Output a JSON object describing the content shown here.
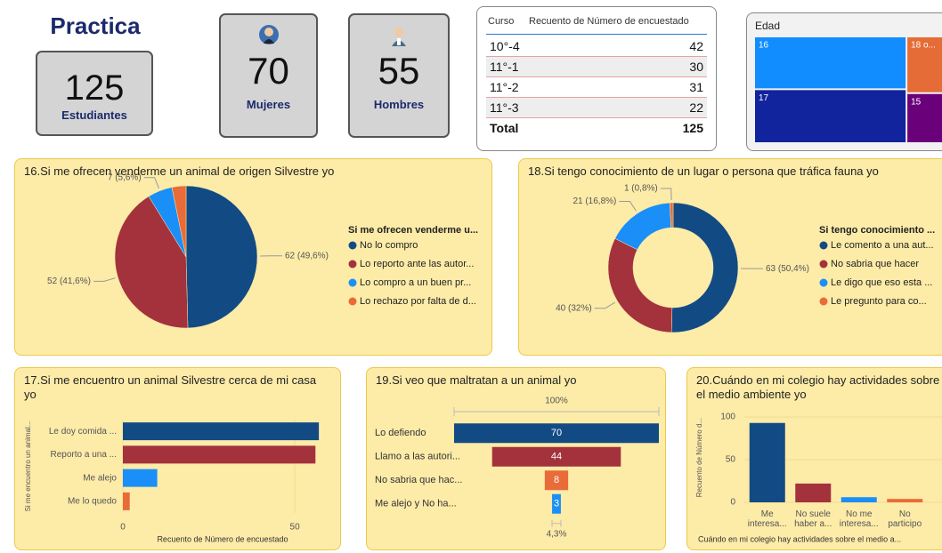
{
  "title": "Practica",
  "cards": [
    {
      "value": 125,
      "label": "Estudiantes"
    },
    {
      "value": 70,
      "label": "Mujeres"
    },
    {
      "value": 55,
      "label": "Hombres"
    }
  ],
  "table": {
    "columns": [
      "Curso",
      "Recuento de Número de encuestado"
    ],
    "rows": [
      [
        "10°-4",
        42
      ],
      [
        "11°-1",
        30
      ],
      [
        "11°-2",
        31
      ],
      [
        "11°-3",
        22
      ]
    ],
    "total": [
      "Total",
      125
    ]
  },
  "chart_data": [
    {
      "type": "treemap",
      "title": "Edad",
      "categories": [
        "16",
        "17",
        "18 o...",
        "15"
      ],
      "values": [
        46,
        47,
        17,
        15
      ],
      "colors": [
        "#118dff",
        "#12239e",
        "#e66c37",
        "#6b007b"
      ]
    },
    {
      "type": "pie",
      "title": "16.Si me ofrecen venderme un animal de origen Silvestre yo",
      "legend_title": "Si me ofrecen venderme u...",
      "categories": [
        "No lo compro",
        "Lo reporto ante las autor...",
        "Lo compro a un buen pr...",
        "Lo rechazo por falta de d..."
      ],
      "values": [
        62,
        52,
        7,
        4
      ],
      "value_labels": [
        "62 (49,6%)",
        "52 (41,6%)",
        "7 (5,6%)",
        null
      ],
      "colors": [
        "#124b84",
        "#a3323d",
        "#1a8ff7",
        "#e96b38"
      ]
    },
    {
      "type": "donut",
      "title": "18.Si tengo conocimiento de un lugar o persona que tráfica fauna yo",
      "legend_title": "Si tengo conocimiento ...",
      "categories": [
        "Le comento a una aut...",
        "No sabria que hacer",
        "Le digo que eso esta ...",
        "Le pregunto para co..."
      ],
      "values": [
        63,
        40,
        21,
        1
      ],
      "value_labels": [
        "63 (50,4%)",
        "40 (32%)",
        "21 (16,8%)",
        "1 (0,8%)"
      ],
      "colors": [
        "#124b84",
        "#a3323d",
        "#1a8ff7",
        "#e96b38"
      ]
    },
    {
      "type": "bar",
      "orientation": "horizontal",
      "title": "17.Si me encuentro un animal Silvestre cerca de mi casa yo",
      "categories": [
        "Le doy comida ...",
        "Reporto a una ...",
        "Me alejo",
        "Me lo quedo"
      ],
      "values": [
        57,
        56,
        10,
        2
      ],
      "colors": [
        "#124b84",
        "#a3323d",
        "#1a8ff7",
        "#e96b38"
      ],
      "xlim": [
        0,
        58
      ],
      "xticks": [
        0,
        50
      ],
      "xlabel": "Recuento de Número de encuestado",
      "ylabel": "Si me encuentro un animal..."
    },
    {
      "type": "funnel",
      "title": "19.Si veo que maltratan a un animal yo",
      "top_label": "100%",
      "bottom_label": "4,3%",
      "categories": [
        "Lo defiendo",
        "Llamo a las autori...",
        "No sabria que hac...",
        "Me alejo y No ha..."
      ],
      "values": [
        70,
        44,
        8,
        3
      ],
      "colors": [
        "#124b84",
        "#a3323d",
        "#e96b38",
        "#1a8ff7"
      ]
    },
    {
      "type": "bar",
      "orientation": "vertical",
      "title": "20.Cuándo en mi colegio hay actividades sobre el medio ambiente yo",
      "categories": [
        "Me interesa...",
        "No suele haber a...",
        "No me interesa...",
        "No participo"
      ],
      "values": [
        93,
        22,
        6,
        4
      ],
      "colors": [
        "#124b84",
        "#a3323d",
        "#1a8ff7",
        "#e96b38"
      ],
      "ylim": [
        0,
        105
      ],
      "yticks": [
        0,
        50,
        100
      ],
      "ylabel": "Recuento de Número d...",
      "xlabel": "Cuándo en mi colegio hay actividades sobre el medio a..."
    }
  ]
}
